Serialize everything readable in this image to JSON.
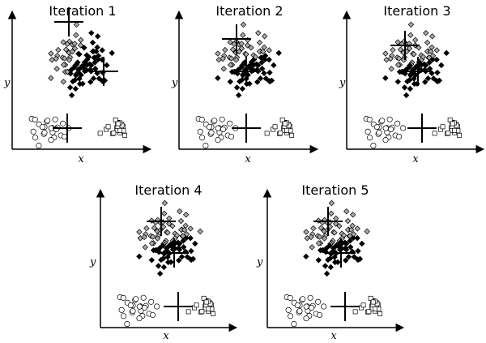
{
  "figure": {
    "panels": [
      {
        "title": "Iteration 1",
        "xlabel": "x",
        "ylabel": "y"
      },
      {
        "title": "Iteration 2",
        "xlabel": "x",
        "ylabel": "y"
      },
      {
        "title": "Iteration 3",
        "xlabel": "x",
        "ylabel": "y"
      },
      {
        "title": "Iteration 4",
        "xlabel": "x",
        "ylabel": "y"
      },
      {
        "title": "Iteration 5",
        "xlabel": "x",
        "ylabel": "y"
      }
    ]
  },
  "colors": {
    "axis": "#000000",
    "cluster_white_fill": "#ffffff",
    "cluster_gray_fill": "#a8a8a8",
    "cluster_black_fill": "#000000",
    "centroid": "#000000"
  }
}
